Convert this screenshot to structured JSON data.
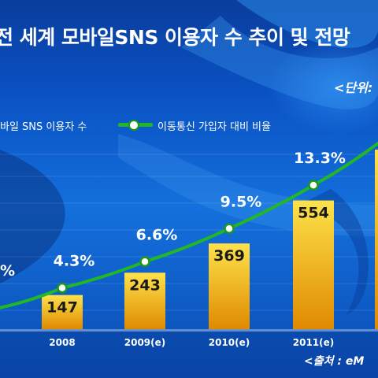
{
  "title": "전 세계 모바일SNS 이용자 수 추이 및 전망",
  "unit_label": "<단위:",
  "source_label": "<출처 : eM",
  "legend": {
    "bar_label": "바일 SNS 이용자 수",
    "line_label": "이동통신 가입자 대비 비율"
  },
  "colors": {
    "bar_top": "#fde24a",
    "bar_bottom": "#e08a00",
    "line": "#22b825",
    "marker_fill": "#ffffff",
    "marker_stroke": "#1a9a1a"
  },
  "chart_data": {
    "type": "bar",
    "categories": [
      "",
      "2008",
      "2009(e)",
      "2010(e)",
      "2011(e)",
      ""
    ],
    "series": [
      {
        "values": [
          null,
          147,
          243,
          369,
          554,
          null
        ]
      },
      {
        "values": [
          null,
          4.3,
          6.6,
          9.5,
          13.3,
          null
        ]
      }
    ],
    "bar_labels": [
      "",
      "147",
      "243",
      "369",
      "554",
      ""
    ],
    "line_labels": [
      "%",
      "4.3%",
      "6.6%",
      "9.5%",
      "13.3%",
      ""
    ]
  }
}
